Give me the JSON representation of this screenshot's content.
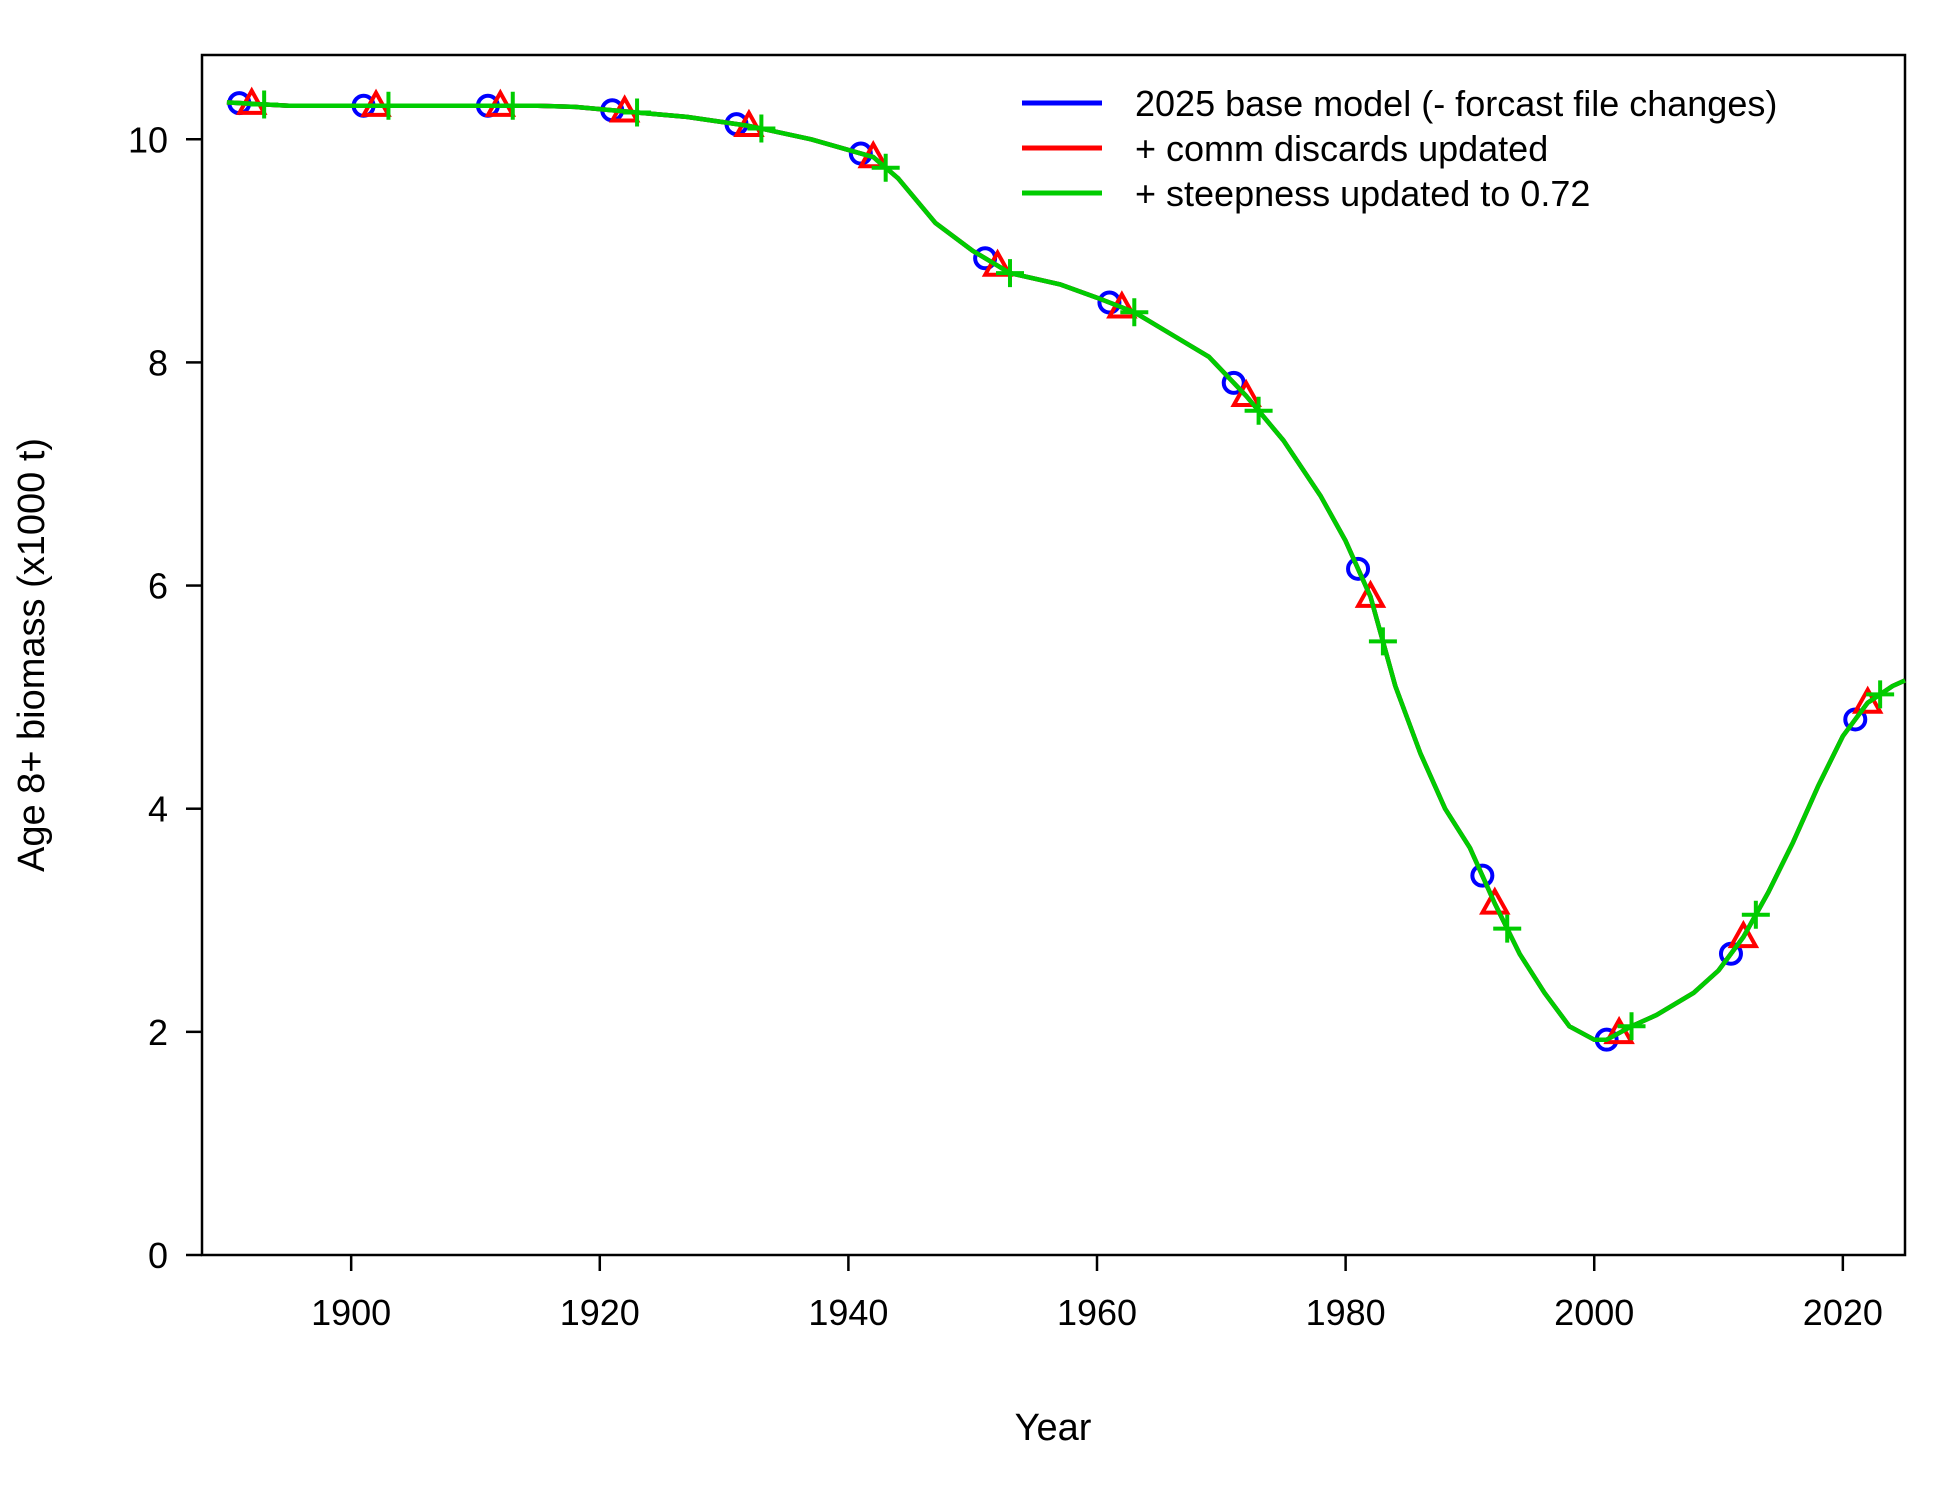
{
  "chart_data": {
    "type": "line",
    "xlabel": "Year",
    "ylabel": "Age 8+ biomass (x1000 t)",
    "xlim": [
      1888,
      2025
    ],
    "ylim": [
      0,
      10.8
    ],
    "x_ticks": [
      1900,
      1920,
      1940,
      1960,
      1980,
      2000,
      2020
    ],
    "y_ticks": [
      0,
      2,
      4,
      6,
      8,
      10
    ],
    "grid": false,
    "legend_position": "top-right",
    "series": [
      {
        "name": "2025 base model (- forcast file changes)",
        "color": "#0000FF",
        "marker": "circle",
        "marker_years": [
          1891,
          1901,
          1911,
          1921,
          1931,
          1941,
          1951,
          1961,
          1971,
          1981,
          1991,
          2001,
          2011,
          2021
        ],
        "x": [
          1890,
          1895,
          1900,
          1905,
          1910,
          1915,
          1918,
          1922,
          1927,
          1932,
          1937,
          1942,
          1944,
          1947,
          1950,
          1953,
          1957,
          1960,
          1963,
          1966,
          1969,
          1972,
          1975,
          1978,
          1980,
          1982,
          1984,
          1986,
          1988,
          1990,
          1992,
          1994,
          1996,
          1998,
          2000,
          2001,
          2003,
          2005,
          2008,
          2010,
          2012,
          2014,
          2016,
          2018,
          2020,
          2022,
          2024,
          2025
        ],
        "y": [
          10.33,
          10.3,
          10.3,
          10.3,
          10.3,
          10.3,
          10.29,
          10.25,
          10.2,
          10.12,
          10.0,
          9.84,
          9.65,
          9.25,
          9.0,
          8.8,
          8.7,
          8.58,
          8.45,
          8.25,
          8.05,
          7.7,
          7.3,
          6.8,
          6.4,
          5.9,
          5.1,
          4.5,
          4.0,
          3.65,
          3.15,
          2.7,
          2.35,
          2.05,
          1.93,
          1.93,
          2.05,
          2.15,
          2.35,
          2.55,
          2.85,
          3.25,
          3.7,
          4.2,
          4.65,
          4.95,
          5.1,
          5.15
        ]
      },
      {
        "name": "+ comm discards updated",
        "color": "#FF0000",
        "marker": "triangle",
        "marker_years": [
          1892,
          1902,
          1912,
          1922,
          1932,
          1942,
          1952,
          1962,
          1972,
          1982,
          1992,
          2002,
          2012,
          2022
        ],
        "x": [
          1890,
          1895,
          1900,
          1905,
          1910,
          1915,
          1918,
          1922,
          1927,
          1932,
          1937,
          1942,
          1944,
          1947,
          1950,
          1953,
          1957,
          1960,
          1963,
          1966,
          1969,
          1972,
          1975,
          1978,
          1980,
          1982,
          1984,
          1986,
          1988,
          1990,
          1992,
          1994,
          1996,
          1998,
          2000,
          2001,
          2003,
          2005,
          2008,
          2010,
          2012,
          2014,
          2016,
          2018,
          2020,
          2022,
          2024,
          2025
        ],
        "y": [
          10.33,
          10.3,
          10.3,
          10.3,
          10.3,
          10.3,
          10.29,
          10.25,
          10.2,
          10.12,
          10.0,
          9.84,
          9.65,
          9.25,
          9.0,
          8.8,
          8.7,
          8.58,
          8.45,
          8.25,
          8.05,
          7.7,
          7.3,
          6.8,
          6.4,
          5.9,
          5.1,
          4.5,
          4.0,
          3.65,
          3.15,
          2.7,
          2.35,
          2.05,
          1.93,
          1.93,
          2.05,
          2.15,
          2.35,
          2.55,
          2.85,
          3.25,
          3.7,
          4.2,
          4.65,
          4.95,
          5.1,
          5.15
        ]
      },
      {
        "name": "+ steepness updated to 0.72",
        "color": "#00CC00",
        "marker": "plus",
        "marker_years": [
          1893,
          1903,
          1913,
          1923,
          1933,
          1943,
          1953,
          1963,
          1973,
          1983,
          1993,
          2003,
          2013,
          2023
        ],
        "x": [
          1890,
          1895,
          1900,
          1905,
          1910,
          1915,
          1918,
          1922,
          1927,
          1932,
          1937,
          1942,
          1944,
          1947,
          1950,
          1953,
          1957,
          1960,
          1963,
          1966,
          1969,
          1972,
          1975,
          1978,
          1980,
          1982,
          1984,
          1986,
          1988,
          1990,
          1992,
          1994,
          1996,
          1998,
          2000,
          2001,
          2003,
          2005,
          2008,
          2010,
          2012,
          2014,
          2016,
          2018,
          2020,
          2022,
          2024,
          2025
        ],
        "y": [
          10.33,
          10.3,
          10.3,
          10.3,
          10.3,
          10.3,
          10.29,
          10.25,
          10.2,
          10.12,
          10.0,
          9.84,
          9.65,
          9.25,
          9.0,
          8.8,
          8.7,
          8.58,
          8.45,
          8.25,
          8.05,
          7.7,
          7.3,
          6.8,
          6.4,
          5.9,
          5.1,
          4.5,
          4.0,
          3.65,
          3.15,
          2.7,
          2.35,
          2.05,
          1.93,
          1.93,
          2.05,
          2.15,
          2.35,
          2.55,
          2.85,
          3.25,
          3.7,
          4.2,
          4.65,
          4.95,
          5.1,
          5.15
        ]
      }
    ]
  }
}
